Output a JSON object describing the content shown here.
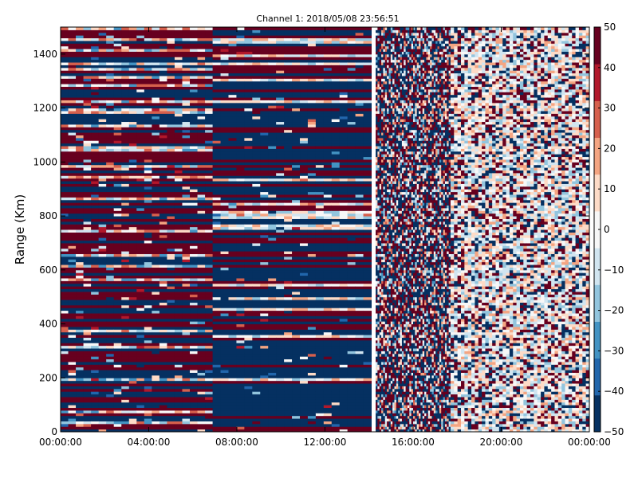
{
  "chart_data": {
    "type": "heatmap",
    "title": "Channel 1: 2018/05/08 23:56:51",
    "xlabel": "",
    "ylabel": "Range (Km)",
    "x_ticks": [
      "00:00:00",
      "04:00:00",
      "08:00:00",
      "12:00:00",
      "16:00:00",
      "20:00:00",
      "00:00:00"
    ],
    "x_tick_hours": [
      0,
      4,
      8,
      12,
      16,
      20,
      24
    ],
    "xlim_hours": [
      0,
      24
    ],
    "ylim": [
      0,
      1500
    ],
    "y_ticks": [
      0,
      200,
      400,
      600,
      800,
      1000,
      1200,
      1400
    ],
    "colorbar": {
      "vmin": -50,
      "vmax": 50,
      "ticks": [
        "50",
        "40",
        "30",
        "20",
        "10",
        "0",
        "−10",
        "−20",
        "−30",
        "−40",
        "−50"
      ],
      "tick_values": [
        50,
        40,
        30,
        20,
        10,
        0,
        -10,
        -20,
        -30,
        -40,
        -50
      ],
      "colormap": "RdBu_r",
      "colors": [
        "#053061",
        "#2166ac",
        "#4393c3",
        "#92c5de",
        "#d1e5f0",
        "#f7f7f7",
        "#fddbc7",
        "#f4a582",
        "#d6604d",
        "#b2182b",
        "#67001f"
      ]
    },
    "segments": [
      {
        "start_hour": 0.0,
        "end_hour": 6.9,
        "pattern": "horizontal bands, alternating strong positive and strong negative"
      },
      {
        "start_hour": 6.9,
        "end_hour": 14.1,
        "pattern": "horizontal bands, predominantly negative with positive stripes"
      },
      {
        "start_hour": 14.1,
        "end_hour": 14.3,
        "pattern": "no data gap"
      },
      {
        "start_hour": 14.3,
        "end_hour": 17.7,
        "pattern": "mixed noisy values"
      },
      {
        "start_hour": 17.7,
        "end_hour": 24.0,
        "pattern": "noisy values near zero with scattered extremes"
      }
    ],
    "grid": false,
    "legend": "colorbar-right"
  }
}
